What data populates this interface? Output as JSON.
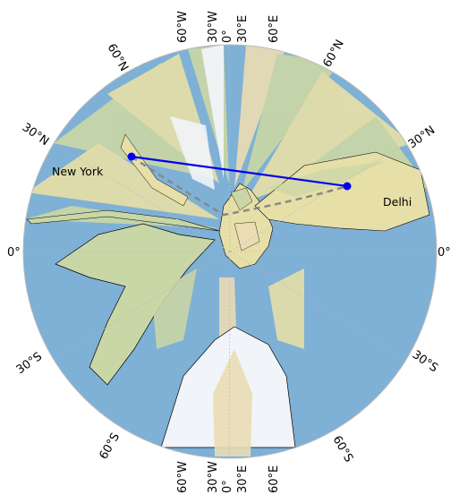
{
  "map": {
    "projection": "azimuthal",
    "center_region": "Mediterranean / North Africa",
    "colors": {
      "ocean": "#7fb0d6",
      "land_green": "#c9d6a6",
      "land_yellow": "#e6dfa8",
      "land_tan": "#eadcb4",
      "ice": "#f1f4f8",
      "coastline": "#000000",
      "route": "#0000ee",
      "great_circle": "#888888",
      "gridline": "#b8b8b8",
      "border": "#bbbbbb"
    },
    "labels": {
      "lon_top": [
        "60°W",
        "30°W",
        "0°",
        "30°E",
        "60°E"
      ],
      "lon_bottom": [
        "60°W",
        "30°W",
        "0°",
        "30°E",
        "60°E"
      ],
      "lat_north_left": [
        "60°N",
        "30°N"
      ],
      "lat_north_right": [
        "60°N",
        "30°N"
      ],
      "equator_left": "0°",
      "equator_right": "0°",
      "lat_south_left": [
        "30°S",
        "60°S"
      ],
      "lat_south_right": [
        "30°S",
        "60°S"
      ]
    },
    "cities": [
      {
        "name": "New York",
        "lat": 40.7,
        "lon": -74.0
      },
      {
        "name": "Delhi",
        "lat": 28.6,
        "lon": 77.2
      }
    ]
  }
}
